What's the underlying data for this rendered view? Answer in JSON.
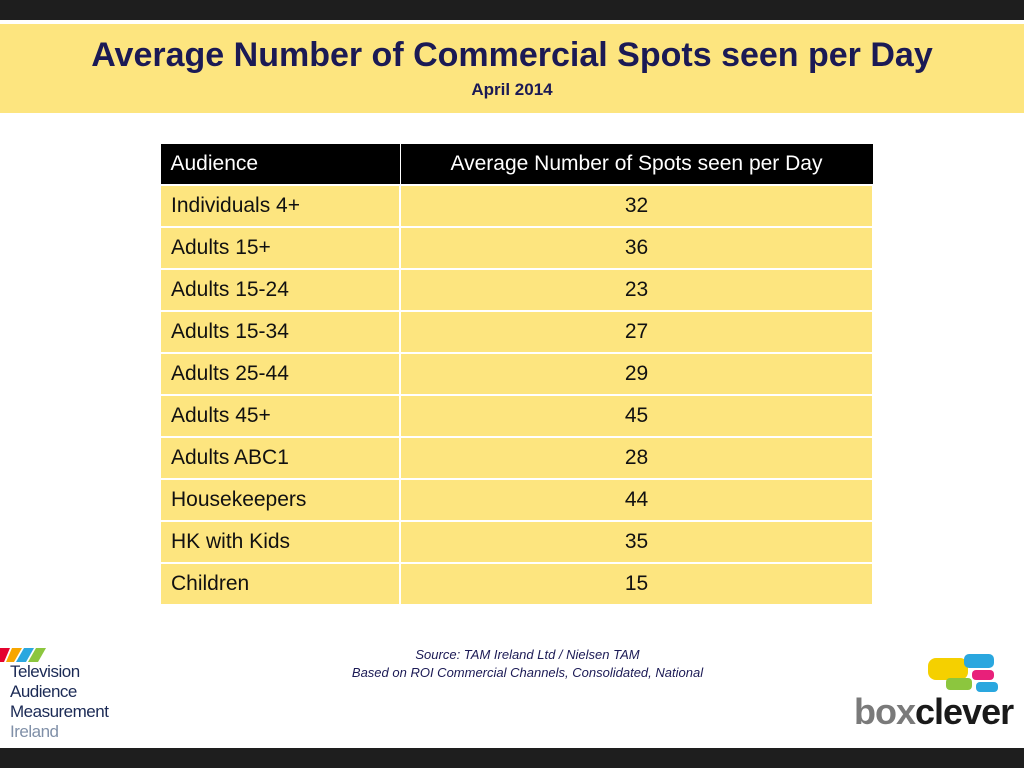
{
  "header": {
    "title": "Average Number of Commercial Spots seen per Day",
    "subtitle": "April 2014"
  },
  "table": {
    "columns": [
      "Audience",
      "Average Number of Spots seen per Day"
    ],
    "rows": [
      {
        "audience": "Individuals 4+",
        "value": "32"
      },
      {
        "audience": "Adults 15+",
        "value": "36"
      },
      {
        "audience": "Adults 15-24",
        "value": "23"
      },
      {
        "audience": "Adults 15-34",
        "value": "27"
      },
      {
        "audience": "Adults 25-44",
        "value": "29"
      },
      {
        "audience": "Adults 45+",
        "value": "45"
      },
      {
        "audience": "Adults ABC1",
        "value": "28"
      },
      {
        "audience": "Housekeepers",
        "value": "44"
      },
      {
        "audience": "HK with Kids",
        "value": "35"
      },
      {
        "audience": "Children",
        "value": "15"
      }
    ]
  },
  "footer": {
    "source_line1": "Source: TAM Ireland Ltd / Nielsen TAM",
    "source_line2": "Based on ROI Commercial Channels, Consolidated, National"
  },
  "logos": {
    "tam": [
      "Television",
      "Audience",
      "Measurement",
      "Ireland"
    ],
    "boxclever": {
      "part1": "box",
      "part2": "clever"
    }
  },
  "colors": {
    "accent_yellow": "#fde57f",
    "header_black": "#000000",
    "title_navy": "#1b1a55"
  }
}
